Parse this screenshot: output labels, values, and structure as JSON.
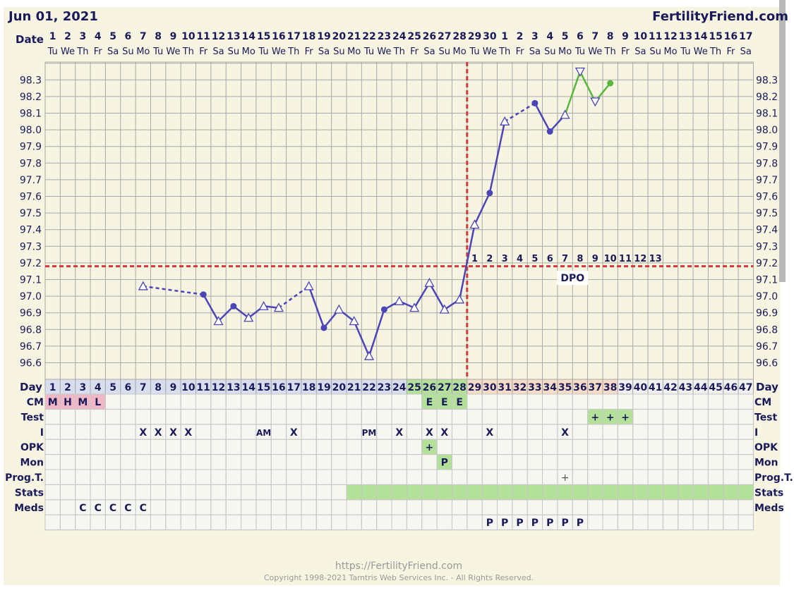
{
  "header": {
    "date": "Jun 01, 2021",
    "brand": "FertilityFriend.com"
  },
  "footer": {
    "url": "https://FertilityFriend.com",
    "copyright": "Copyright 1998-2021 Tamtris Web Services Inc. - All Rights Reserved."
  },
  "colors": {
    "background": "#f7f5e1",
    "grid": "#a9a9a9",
    "line": "#4b45b8",
    "line_luteal": "#59b83c",
    "coverline": "#d23b3b",
    "text": "#1a1a5a",
    "cell_pink": "#f0b8c7",
    "cell_green": "#b4e19a",
    "cell_blue": "#d9deee",
    "cell_peach": "#f6dcc7"
  },
  "chart_data": {
    "type": "line",
    "ylim": [
      96.5,
      98.4
    ],
    "yticks": [
      "96.6",
      "96.7",
      "96.8",
      "96.9",
      "97.0",
      "97.1",
      "97.2",
      "97.3",
      "97.4",
      "97.5",
      "97.6",
      "97.7",
      "97.8",
      "97.9",
      "98.0",
      "98.1",
      "98.2",
      "98.3"
    ],
    "date_row_label": "Date",
    "day_row_label": "Day",
    "dates": [
      "1",
      "2",
      "3",
      "4",
      "5",
      "6",
      "7",
      "8",
      "9",
      "10",
      "11",
      "12",
      "13",
      "14",
      "15",
      "16",
      "17",
      "18",
      "19",
      "20",
      "21",
      "22",
      "23",
      "24",
      "25",
      "26",
      "27",
      "28",
      "29",
      "30",
      "1",
      "2",
      "3",
      "4",
      "5",
      "6",
      "7",
      "8",
      "9",
      "10",
      "11",
      "12",
      "13",
      "14",
      "15",
      "16",
      "17"
    ],
    "weekdays": [
      "Tu",
      "We",
      "Th",
      "Fr",
      "Sa",
      "Su",
      "Mo",
      "Tu",
      "We",
      "Th",
      "Fr",
      "Sa",
      "Su",
      "Mo",
      "Tu",
      "We",
      "Th",
      "Fr",
      "Sa",
      "Su",
      "Mo",
      "Tu",
      "We",
      "Th",
      "Fr",
      "Sa",
      "Su",
      "Mo",
      "Tu",
      "We",
      "Th",
      "Fr",
      "Sa",
      "Su",
      "Mo",
      "Tu",
      "We",
      "Th",
      "Fr",
      "Sa",
      "Su",
      "Mo",
      "Tu",
      "We",
      "Th",
      "Fr",
      "Sa"
    ],
    "days": [
      "1",
      "2",
      "3",
      "4",
      "5",
      "6",
      "7",
      "8",
      "9",
      "10",
      "11",
      "12",
      "13",
      "14",
      "15",
      "16",
      "17",
      "18",
      "19",
      "20",
      "21",
      "22",
      "23",
      "24",
      "25",
      "26",
      "27",
      "28",
      "29",
      "30",
      "31",
      "32",
      "33",
      "34",
      "35",
      "36",
      "37",
      "38",
      "39",
      "40",
      "41",
      "42",
      "43",
      "44",
      "45",
      "46",
      "47"
    ],
    "temperatures": [
      {
        "day": 7,
        "temp": 97.06,
        "marker": "triangle-up"
      },
      {
        "day": 11,
        "temp": 97.01,
        "marker": "dot"
      },
      {
        "day": 12,
        "temp": 96.85,
        "marker": "triangle-up"
      },
      {
        "day": 13,
        "temp": 96.94,
        "marker": "dot"
      },
      {
        "day": 14,
        "temp": 96.87,
        "marker": "triangle-up"
      },
      {
        "day": 15,
        "temp": 96.94,
        "marker": "triangle-up"
      },
      {
        "day": 16,
        "temp": 96.93,
        "marker": "triangle-up"
      },
      {
        "day": 18,
        "temp": 97.06,
        "marker": "triangle-up"
      },
      {
        "day": 19,
        "temp": 96.81,
        "marker": "dot"
      },
      {
        "day": 20,
        "temp": 96.92,
        "marker": "triangle-up"
      },
      {
        "day": 21,
        "temp": 96.85,
        "marker": "triangle-up"
      },
      {
        "day": 22,
        "temp": 96.64,
        "marker": "triangle-up"
      },
      {
        "day": 23,
        "temp": 96.92,
        "marker": "dot"
      },
      {
        "day": 24,
        "temp": 96.97,
        "marker": "triangle-up"
      },
      {
        "day": 25,
        "temp": 96.93,
        "marker": "triangle-up"
      },
      {
        "day": 26,
        "temp": 97.08,
        "marker": "triangle-up"
      },
      {
        "day": 27,
        "temp": 96.92,
        "marker": "triangle-up"
      },
      {
        "day": 28,
        "temp": 96.98,
        "marker": "triangle-up"
      },
      {
        "day": 29,
        "temp": 97.43,
        "marker": "triangle-up"
      },
      {
        "day": 30,
        "temp": 97.62,
        "marker": "dot"
      },
      {
        "day": 31,
        "temp": 98.05,
        "marker": "triangle-up"
      },
      {
        "day": 33,
        "temp": 98.16,
        "marker": "dot"
      },
      {
        "day": 34,
        "temp": 97.99,
        "marker": "dot"
      },
      {
        "day": 35,
        "temp": 98.09,
        "marker": "triangle-up"
      },
      {
        "day": 36,
        "temp": 98.35,
        "marker": "triangle-down"
      },
      {
        "day": 37,
        "temp": 98.17,
        "marker": "triangle-down"
      },
      {
        "day": 38,
        "temp": 98.28,
        "marker": "dot"
      }
    ],
    "segments": [
      {
        "from": 7,
        "to": 11,
        "style": "dashed",
        "color": "blue"
      },
      {
        "from": 11,
        "to": 16,
        "style": "solid",
        "color": "blue"
      },
      {
        "from": 16,
        "to": 18,
        "style": "dashed",
        "color": "blue"
      },
      {
        "from": 18,
        "to": 31,
        "style": "solid",
        "color": "blue"
      },
      {
        "from": 31,
        "to": 33,
        "style": "dashed",
        "color": "blue"
      },
      {
        "from": 33,
        "to": 35,
        "style": "solid",
        "color": "blue"
      },
      {
        "from": 35,
        "to": 38,
        "style": "solid",
        "color": "green"
      }
    ],
    "coverline": 97.18,
    "ovulation_day": 28,
    "dpo": {
      "label": "DPO",
      "start_day": 29,
      "numbers": [
        "1",
        "2",
        "3",
        "4",
        "5",
        "6",
        "7",
        "8",
        "9",
        "10",
        "11",
        "12",
        "13"
      ],
      "label_day": 36
    },
    "rows": [
      {
        "name": "CM",
        "cells": [
          {
            "day": 1,
            "text": "M",
            "bg": "pink"
          },
          {
            "day": 2,
            "text": "H",
            "bg": "pink"
          },
          {
            "day": 3,
            "text": "M",
            "bg": "pink"
          },
          {
            "day": 4,
            "text": "L",
            "bg": "pink"
          },
          {
            "day": 26,
            "text": "E",
            "bg": "green"
          },
          {
            "day": 27,
            "text": "E",
            "bg": "green"
          },
          {
            "day": 28,
            "text": "E",
            "bg": "green"
          }
        ]
      },
      {
        "name": "Test",
        "cells": [
          {
            "day": 37,
            "text": "+",
            "bg": "green"
          },
          {
            "day": 38,
            "text": "+",
            "bg": "green"
          },
          {
            "day": 39,
            "text": "+",
            "bg": "green"
          }
        ]
      },
      {
        "name": "I",
        "cells": [
          {
            "day": 7,
            "text": "X"
          },
          {
            "day": 8,
            "text": "X"
          },
          {
            "day": 9,
            "text": "X"
          },
          {
            "day": 10,
            "text": "X"
          },
          {
            "day": 15,
            "text": "AM"
          },
          {
            "day": 17,
            "text": "X"
          },
          {
            "day": 22,
            "text": "PM"
          },
          {
            "day": 24,
            "text": "X"
          },
          {
            "day": 26,
            "text": "X"
          },
          {
            "day": 27,
            "text": "X"
          },
          {
            "day": 30,
            "text": "X"
          },
          {
            "day": 35,
            "text": "X"
          }
        ]
      },
      {
        "name": "OPK",
        "cells": [
          {
            "day": 26,
            "text": "+",
            "bg": "green"
          }
        ]
      },
      {
        "name": "Mon",
        "cells": [
          {
            "day": 27,
            "text": "P",
            "bg": "green"
          }
        ]
      },
      {
        "name": "Prog.T.",
        "cells": [
          {
            "day": 35,
            "text": "+",
            "light": true
          }
        ]
      },
      {
        "name": "Stats",
        "cells": [],
        "green_from": 21,
        "green_to": 47
      },
      {
        "name": "Meds",
        "cells": [
          {
            "day": 3,
            "text": "C"
          },
          {
            "day": 4,
            "text": "C"
          },
          {
            "day": 5,
            "text": "C"
          },
          {
            "day": 6,
            "text": "C"
          },
          {
            "day": 7,
            "text": "C"
          }
        ]
      },
      {
        "name": "",
        "cells": [
          {
            "day": 30,
            "text": "P"
          },
          {
            "day": 31,
            "text": "P"
          },
          {
            "day": 32,
            "text": "P"
          },
          {
            "day": 33,
            "text": "P"
          },
          {
            "day": 34,
            "text": "P"
          },
          {
            "day": 35,
            "text": "P"
          },
          {
            "day": 36,
            "text": "P"
          }
        ]
      }
    ]
  }
}
